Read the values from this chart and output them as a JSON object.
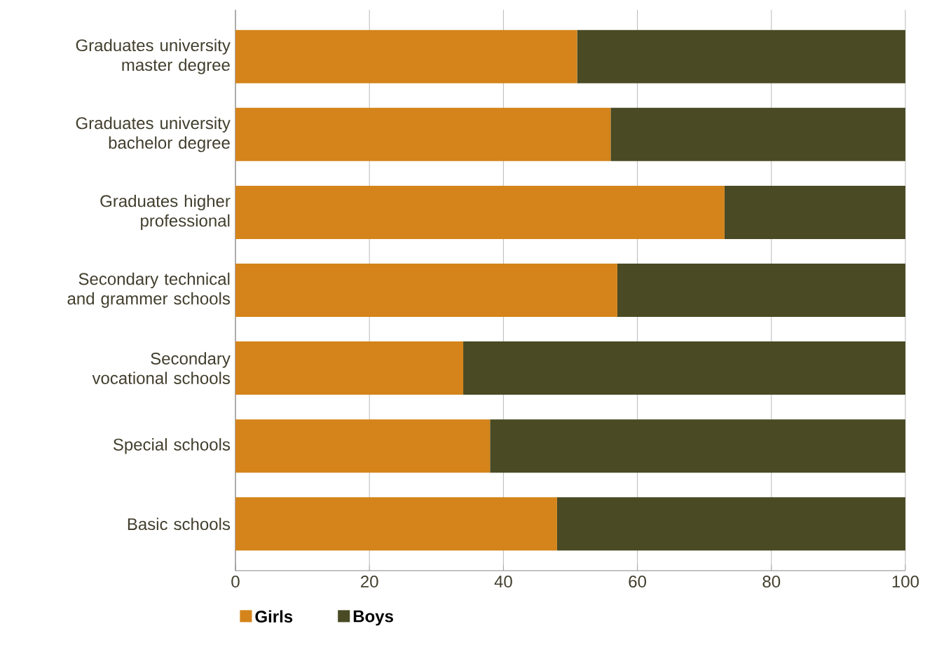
{
  "chart_data": {
    "type": "bar",
    "orientation": "horizontal",
    "stacked": true,
    "categories": [
      "Graduates university master degree",
      "Graduates university bachelor degree",
      "Graduates higher professional",
      "Secondary technical and grammer schools",
      "Secondary vocational schools",
      "Special schools",
      "Basic schools"
    ],
    "series": [
      {
        "name": "Girls",
        "color": "#d4841a",
        "values": [
          51,
          56,
          73,
          57,
          34,
          38,
          48
        ]
      },
      {
        "name": "Boys",
        "color": "#4a4a24",
        "values": [
          49,
          44,
          27,
          43,
          66,
          62,
          52
        ]
      }
    ],
    "xlim": [
      0,
      100
    ],
    "xticks": [
      0,
      20,
      40,
      60,
      80,
      100
    ],
    "grid": "x",
    "legend": "bottom"
  }
}
